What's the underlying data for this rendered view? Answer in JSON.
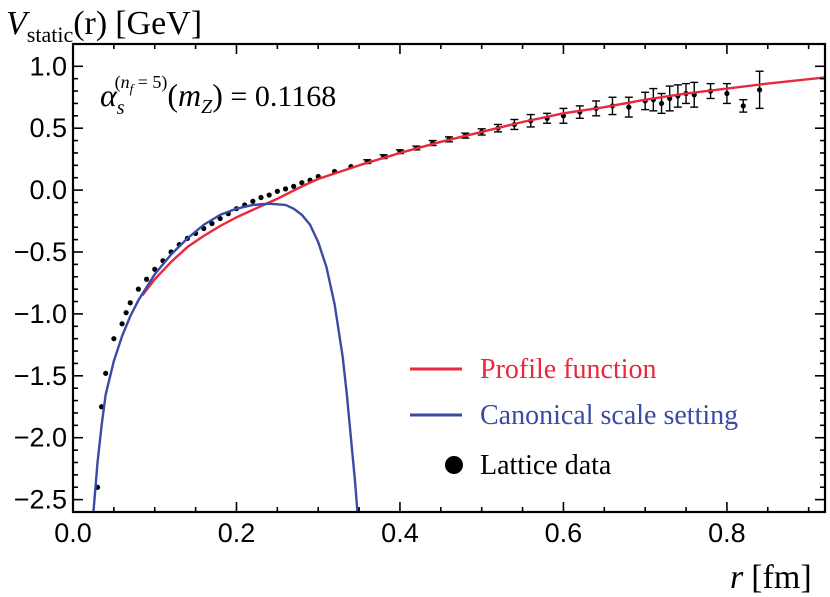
{
  "chart_data": {
    "type": "line",
    "title": "",
    "ylabel": {
      "main": "V",
      "sub": "static",
      "arg": "(r)",
      "unit": "[GeV]"
    },
    "xlabel": {
      "var": "r",
      "unit": "[fm]"
    },
    "xlim": [
      0.0,
      0.92
    ],
    "ylim": [
      -2.6,
      1.18
    ],
    "x_ticks": [
      0.0,
      0.2,
      0.4,
      0.6,
      0.8
    ],
    "x_tick_labels": [
      "0.0",
      "0.2",
      "0.4",
      "0.6",
      "0.8"
    ],
    "y_ticks": [
      1.0,
      0.5,
      0.0,
      -0.5,
      -1.0,
      -1.5,
      -2.0,
      -2.5
    ],
    "y_tick_labels": [
      "1.0",
      "0.5",
      "0.0",
      "−0.5",
      "−1.0",
      "−1.5",
      "−2.0",
      "−2.5"
    ],
    "annotation": {
      "alpha": "α",
      "alpha_sub": "s",
      "sup_open": "(",
      "sup_n": "n",
      "sup_n_sub": "f",
      "sup_rest": " = 5)",
      "arg_open": "(",
      "arg_m": "m",
      "arg_m_sub": "Z",
      "arg_close": ")",
      "value_text": " = 0.1168"
    },
    "legend": {
      "placement": "bottom-right",
      "items": [
        {
          "label": "Profile function",
          "color": "#e8283c",
          "marker": "line"
        },
        {
          "label": "Canonical scale setting",
          "color": "#3a4ba6",
          "marker": "line"
        },
        {
          "label": "Lattice data",
          "color": "#000000",
          "marker": "dot"
        }
      ]
    },
    "series": [
      {
        "name": "Profile function",
        "color": "#e8283c",
        "x": [
          0.085,
          0.1,
          0.12,
          0.14,
          0.16,
          0.18,
          0.2,
          0.22,
          0.25,
          0.28,
          0.3,
          0.35,
          0.4,
          0.45,
          0.5,
          0.55,
          0.6,
          0.65,
          0.7,
          0.75,
          0.8,
          0.85,
          0.92
        ],
        "y": [
          -0.85,
          -0.72,
          -0.58,
          -0.46,
          -0.37,
          -0.29,
          -0.22,
          -0.16,
          -0.07,
          0.03,
          0.09,
          0.2,
          0.3,
          0.39,
          0.47,
          0.55,
          0.62,
          0.67,
          0.73,
          0.78,
          0.82,
          0.86,
          0.91
        ]
      },
      {
        "name": "Canonical scale setting",
        "color": "#3a4ba6",
        "x": [
          0.025,
          0.03,
          0.035,
          0.04,
          0.05,
          0.06,
          0.07,
          0.08,
          0.1,
          0.12,
          0.14,
          0.16,
          0.18,
          0.2,
          0.22,
          0.24,
          0.26,
          0.27,
          0.28,
          0.29,
          0.3,
          0.31,
          0.32,
          0.33,
          0.335,
          0.34,
          0.345,
          0.348
        ],
        "y": [
          -2.6,
          -2.2,
          -1.9,
          -1.65,
          -1.38,
          -1.18,
          -1.02,
          -0.89,
          -0.68,
          -0.52,
          -0.39,
          -0.28,
          -0.2,
          -0.15,
          -0.12,
          -0.11,
          -0.12,
          -0.15,
          -0.2,
          -0.28,
          -0.42,
          -0.62,
          -0.92,
          -1.35,
          -1.65,
          -2.0,
          -2.35,
          -2.6
        ]
      }
    ],
    "lattice_data": {
      "name": "Lattice data",
      "x": [
        0.03,
        0.035,
        0.04,
        0.05,
        0.06,
        0.065,
        0.07,
        0.08,
        0.09,
        0.1,
        0.11,
        0.12,
        0.13,
        0.14,
        0.15,
        0.16,
        0.17,
        0.18,
        0.19,
        0.2,
        0.21,
        0.22,
        0.23,
        0.24,
        0.25,
        0.26,
        0.27,
        0.28,
        0.29,
        0.3,
        0.32,
        0.34,
        0.36,
        0.38,
        0.4,
        0.42,
        0.44,
        0.46,
        0.48,
        0.5,
        0.52,
        0.54,
        0.56,
        0.58,
        0.6,
        0.62,
        0.64,
        0.66,
        0.68,
        0.7,
        0.71,
        0.72,
        0.73,
        0.74,
        0.75,
        0.76,
        0.78,
        0.8,
        0.82,
        0.84
      ],
      "y": [
        -2.4,
        -1.75,
        -1.48,
        -1.2,
        -1.08,
        -0.99,
        -0.91,
        -0.8,
        -0.72,
        -0.64,
        -0.57,
        -0.5,
        -0.44,
        -0.39,
        -0.35,
        -0.31,
        -0.27,
        -0.23,
        -0.19,
        -0.15,
        -0.12,
        -0.09,
        -0.06,
        -0.04,
        -0.01,
        0.01,
        0.03,
        0.06,
        0.08,
        0.11,
        0.15,
        0.19,
        0.23,
        0.27,
        0.31,
        0.34,
        0.38,
        0.41,
        0.44,
        0.47,
        0.5,
        0.53,
        0.56,
        0.58,
        0.6,
        0.63,
        0.66,
        0.68,
        0.67,
        0.72,
        0.73,
        0.7,
        0.74,
        0.76,
        0.78,
        0.77,
        0.8,
        0.78,
        0.68,
        0.81
      ],
      "err": [
        0.01,
        0.01,
        0.01,
        0.01,
        0.01,
        0.01,
        0.01,
        0.01,
        0.01,
        0.01,
        0.01,
        0.01,
        0.01,
        0.01,
        0.01,
        0.01,
        0.01,
        0.01,
        0.01,
        0.01,
        0.01,
        0.01,
        0.01,
        0.01,
        0.01,
        0.01,
        0.01,
        0.01,
        0.01,
        0.01,
        0.01,
        0.01,
        0.015,
        0.015,
        0.015,
        0.015,
        0.02,
        0.02,
        0.02,
        0.025,
        0.03,
        0.04,
        0.05,
        0.04,
        0.06,
        0.05,
        0.06,
        0.07,
        0.08,
        0.07,
        0.09,
        0.08,
        0.1,
        0.09,
        0.08,
        0.1,
        0.06,
        0.08,
        0.05,
        0.15
      ]
    },
    "grid": false
  }
}
